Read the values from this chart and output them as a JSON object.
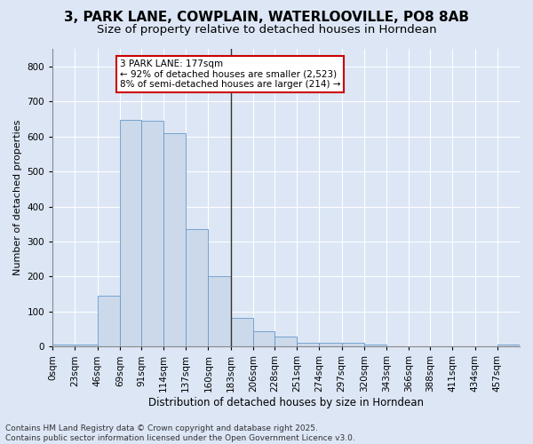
{
  "title": "3, PARK LANE, COWPLAIN, WATERLOOVILLE, PO8 8AB",
  "subtitle": "Size of property relative to detached houses in Horndean",
  "xlabel": "Distribution of detached houses by size in Horndean",
  "ylabel": "Number of detached properties",
  "bar_color": "#ccd9ea",
  "bar_edge_color": "#6699cc",
  "vline_x": 183,
  "vline_color": "#333333",
  "bin_edges": [
    0,
    23,
    46,
    69,
    91,
    114,
    137,
    160,
    183,
    206,
    228,
    251,
    274,
    297,
    320,
    343,
    366,
    388,
    411,
    434,
    457,
    480
  ],
  "values": [
    5,
    5,
    145,
    648,
    645,
    610,
    335,
    200,
    82,
    44,
    28,
    11,
    12,
    12,
    7,
    2,
    0,
    0,
    0,
    0,
    5
  ],
  "ylim": [
    0,
    850
  ],
  "yticks": [
    0,
    100,
    200,
    300,
    400,
    500,
    600,
    700,
    800
  ],
  "xtick_labels": [
    "0sqm",
    "23sqm",
    "46sqm",
    "69sqm",
    "91sqm",
    "114sqm",
    "137sqm",
    "160sqm",
    "183sqm",
    "206sqm",
    "228sqm",
    "251sqm",
    "274sqm",
    "297sqm",
    "320sqm",
    "343sqm",
    "366sqm",
    "388sqm",
    "411sqm",
    "434sqm",
    "457sqm"
  ],
  "annotation_text": "3 PARK LANE: 177sqm\n← 92% of detached houses are smaller (2,523)\n8% of semi-detached houses are larger (214) →",
  "annotation_box_facecolor": "#ffffff",
  "annotation_box_edgecolor": "#cc0000",
  "bg_color": "#dce6f5",
  "plot_bg_color": "#dce6f5",
  "footer_text": "Contains HM Land Registry data © Crown copyright and database right 2025.\nContains public sector information licensed under the Open Government Licence v3.0.",
  "title_fontsize": 11,
  "subtitle_fontsize": 9.5,
  "xlabel_fontsize": 8.5,
  "ylabel_fontsize": 8,
  "tick_fontsize": 7.5,
  "annotation_fontsize": 7.5,
  "footer_fontsize": 6.5
}
